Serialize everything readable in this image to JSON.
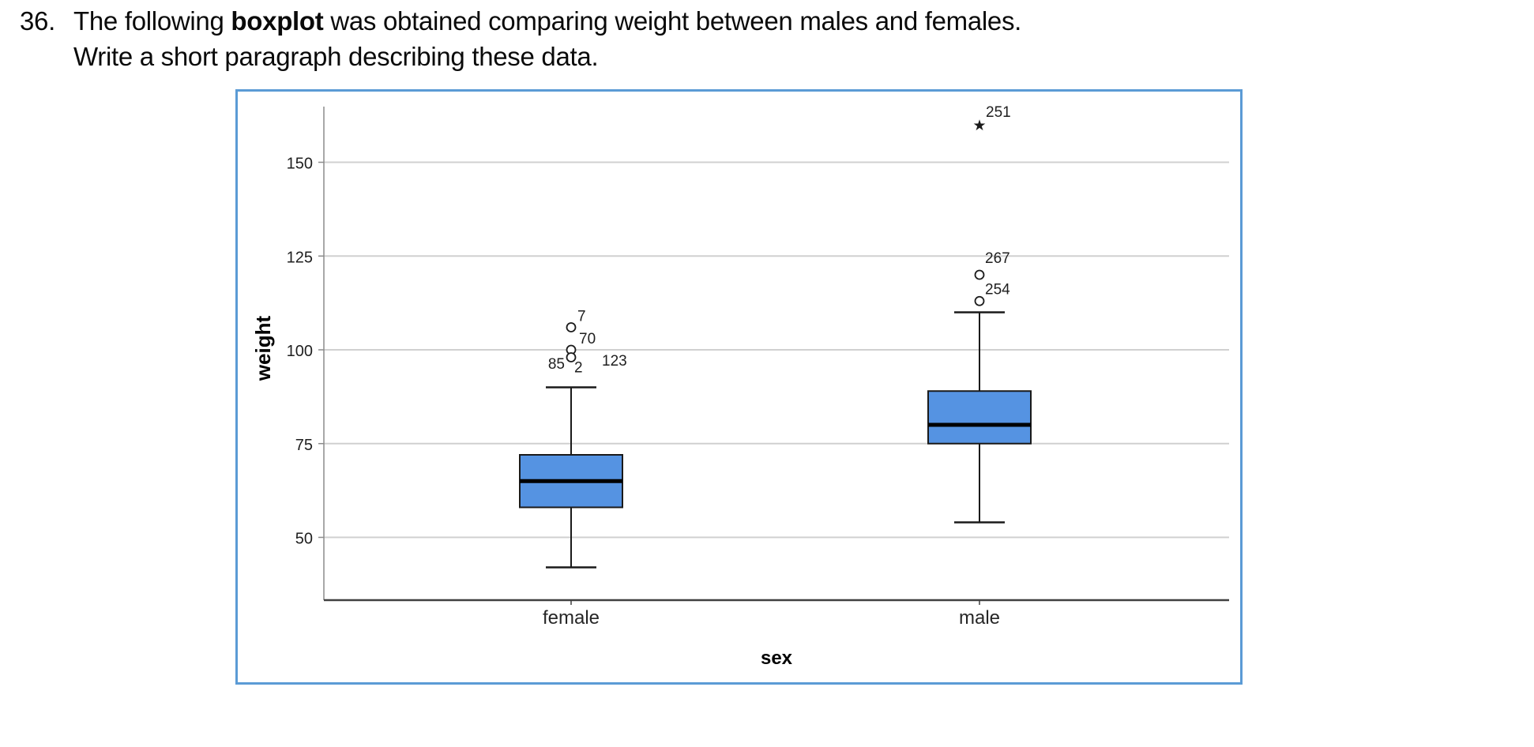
{
  "question": {
    "number": "36.",
    "line1_pre": "The following ",
    "line1_bold": "boxplot",
    "line1_post": " was obtained comparing weight between males and females.",
    "line2": "Write a short paragraph describing these data."
  },
  "colors": {
    "frame_border": "#5b9bd5",
    "box_fill": "#5593e2",
    "box_stroke": "#1a1a1a",
    "median": "#000000",
    "grid_line": "#d0d0d0",
    "y_axis_line": "#8c8c8c",
    "x_axis_line": "#404040",
    "tick_text": "#1f1f1f",
    "label_text": "#000000"
  },
  "chart_data": {
    "type": "boxplot",
    "title": "",
    "xlabel": "sex",
    "ylabel": "weight",
    "categories": [
      "female",
      "male"
    ],
    "yticks": [
      50,
      75,
      100,
      125,
      150
    ],
    "ylim": [
      33,
      166
    ],
    "grid": true,
    "legend": "none",
    "series": [
      {
        "category": "female",
        "whisker_low": 42,
        "q1": 58,
        "median": 65,
        "q3": 72,
        "whisker_high": 90,
        "outliers": [
          {
            "label": "7",
            "value": 106,
            "marker": "circle"
          },
          {
            "label": "70",
            "value": 100,
            "marker": "circle"
          },
          {
            "label": "85",
            "value": 99,
            "marker": "circle"
          },
          {
            "label": "2",
            "value": 98,
            "marker": "circle"
          },
          {
            "label": "123",
            "value": 99,
            "marker": "circle"
          }
        ]
      },
      {
        "category": "male",
        "whisker_low": 54,
        "q1": 75,
        "median": 80,
        "q3": 89,
        "whisker_high": 110,
        "outliers": [
          {
            "label": "254",
            "value": 113,
            "marker": "circle"
          },
          {
            "label": "267",
            "value": 120,
            "marker": "circle"
          },
          {
            "label": "251",
            "value": 160,
            "marker": "star"
          }
        ]
      }
    ]
  }
}
